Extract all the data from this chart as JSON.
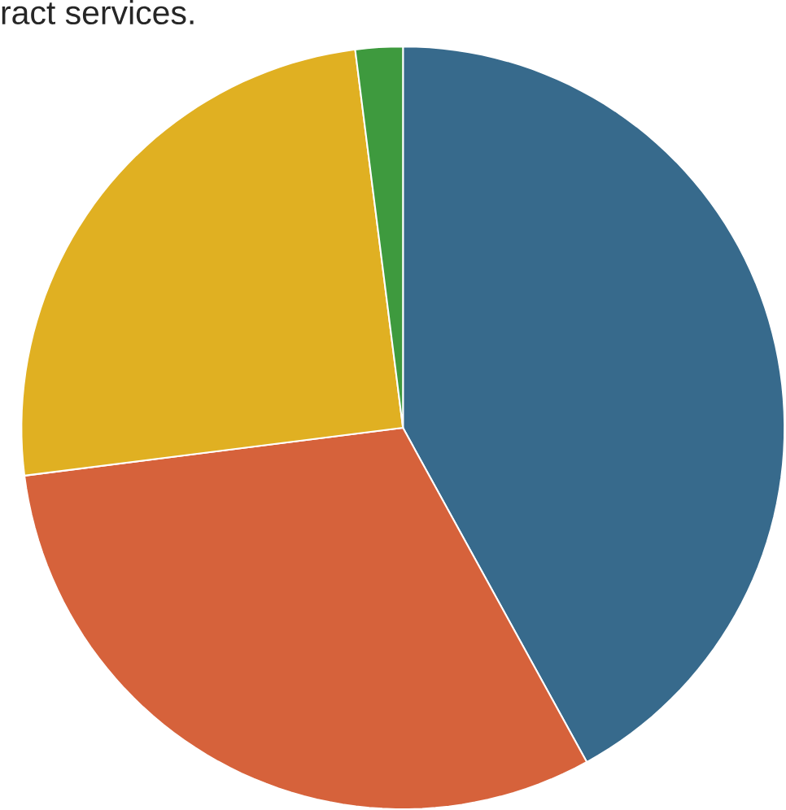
{
  "chart_data": {
    "type": "pie",
    "title": "ract services.",
    "categories": [
      null,
      null,
      null,
      null
    ],
    "values": [
      42,
      31,
      25,
      2
    ],
    "colors": [
      "#376a8c",
      "#d6623b",
      "#e0b022",
      "#3e9a3e"
    ]
  }
}
